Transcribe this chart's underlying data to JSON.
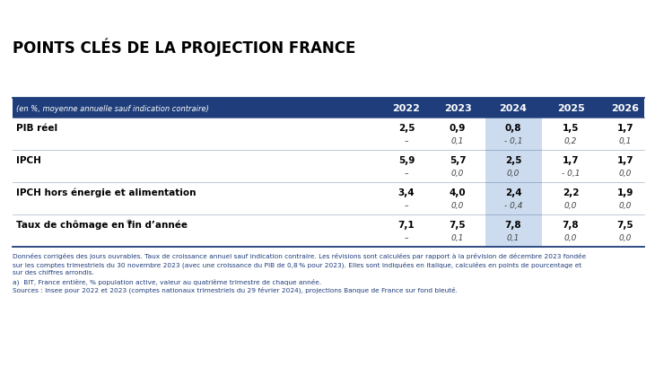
{
  "title": "POINTS CLÉS DE LA PROJECTION FRANCE",
  "header_label": "(en %, moyenne annuelle sauf indication contraire)",
  "years": [
    "2022",
    "2023",
    "2024",
    "2025",
    "2026"
  ],
  "header_bg": "#1f3d7a",
  "header_text_color": "#ffffff",
  "col2024_bg": "#ccdcee",
  "row_bg": "#ffffff",
  "rows": [
    {
      "label": "PIB réel",
      "has_super": false,
      "main": [
        "2,5",
        "0,9",
        "0,8",
        "1,5",
        "1,7"
      ],
      "revision": [
        "–",
        "0,1",
        "- 0,1",
        "0,2",
        "0,1"
      ]
    },
    {
      "label": "IPCH",
      "has_super": false,
      "main": [
        "5,9",
        "5,7",
        "2,5",
        "1,7",
        "1,7"
      ],
      "revision": [
        "–",
        "0,0",
        "0,0",
        "- 0,1",
        "0,0"
      ]
    },
    {
      "label": "IPCH hors énergie et alimentation",
      "has_super": false,
      "main": [
        "3,4",
        "4,0",
        "2,4",
        "2,2",
        "1,9"
      ],
      "revision": [
        "–",
        "0,0",
        "- 0,4",
        "0,0",
        "0,0"
      ]
    },
    {
      "label": "Taux de chômage en fin d’année",
      "has_super": true,
      "label_superscript": "a)",
      "main": [
        "7,1",
        "7,5",
        "7,8",
        "7,8",
        "7,5"
      ],
      "revision": [
        "–",
        "0,1",
        "0,1",
        "0,0",
        "0,0"
      ]
    }
  ],
  "footnote_lines": [
    "Données corrigées des jours ouvrables. Taux de croissance annuel sauf indication contraire. Les révisions sont calculées par rapport à la prévision de décembre 2023 fondée",
    "sur les comptes trimestriels du 30 novembre 2023 (avec une croissance du PIB de 0,8 % pour 2023). Elles sont indiquées en italique, calculées en points de pourcentage et",
    "sur des chiffres arrondis.",
    "a)  BIT, France entière, % population active, valeur au quatrième trimestre de chaque année.",
    "Sources : Insee pour 2022 et 2023 (comptes nationaux trimestriels du 29 février 2024), projections Banque de France sur fond bleuté."
  ],
  "border_color": "#1f3d7a",
  "text_color_data": "#000000",
  "text_color_footnote": "#1f3d7a",
  "bg_color": "#ffffff"
}
